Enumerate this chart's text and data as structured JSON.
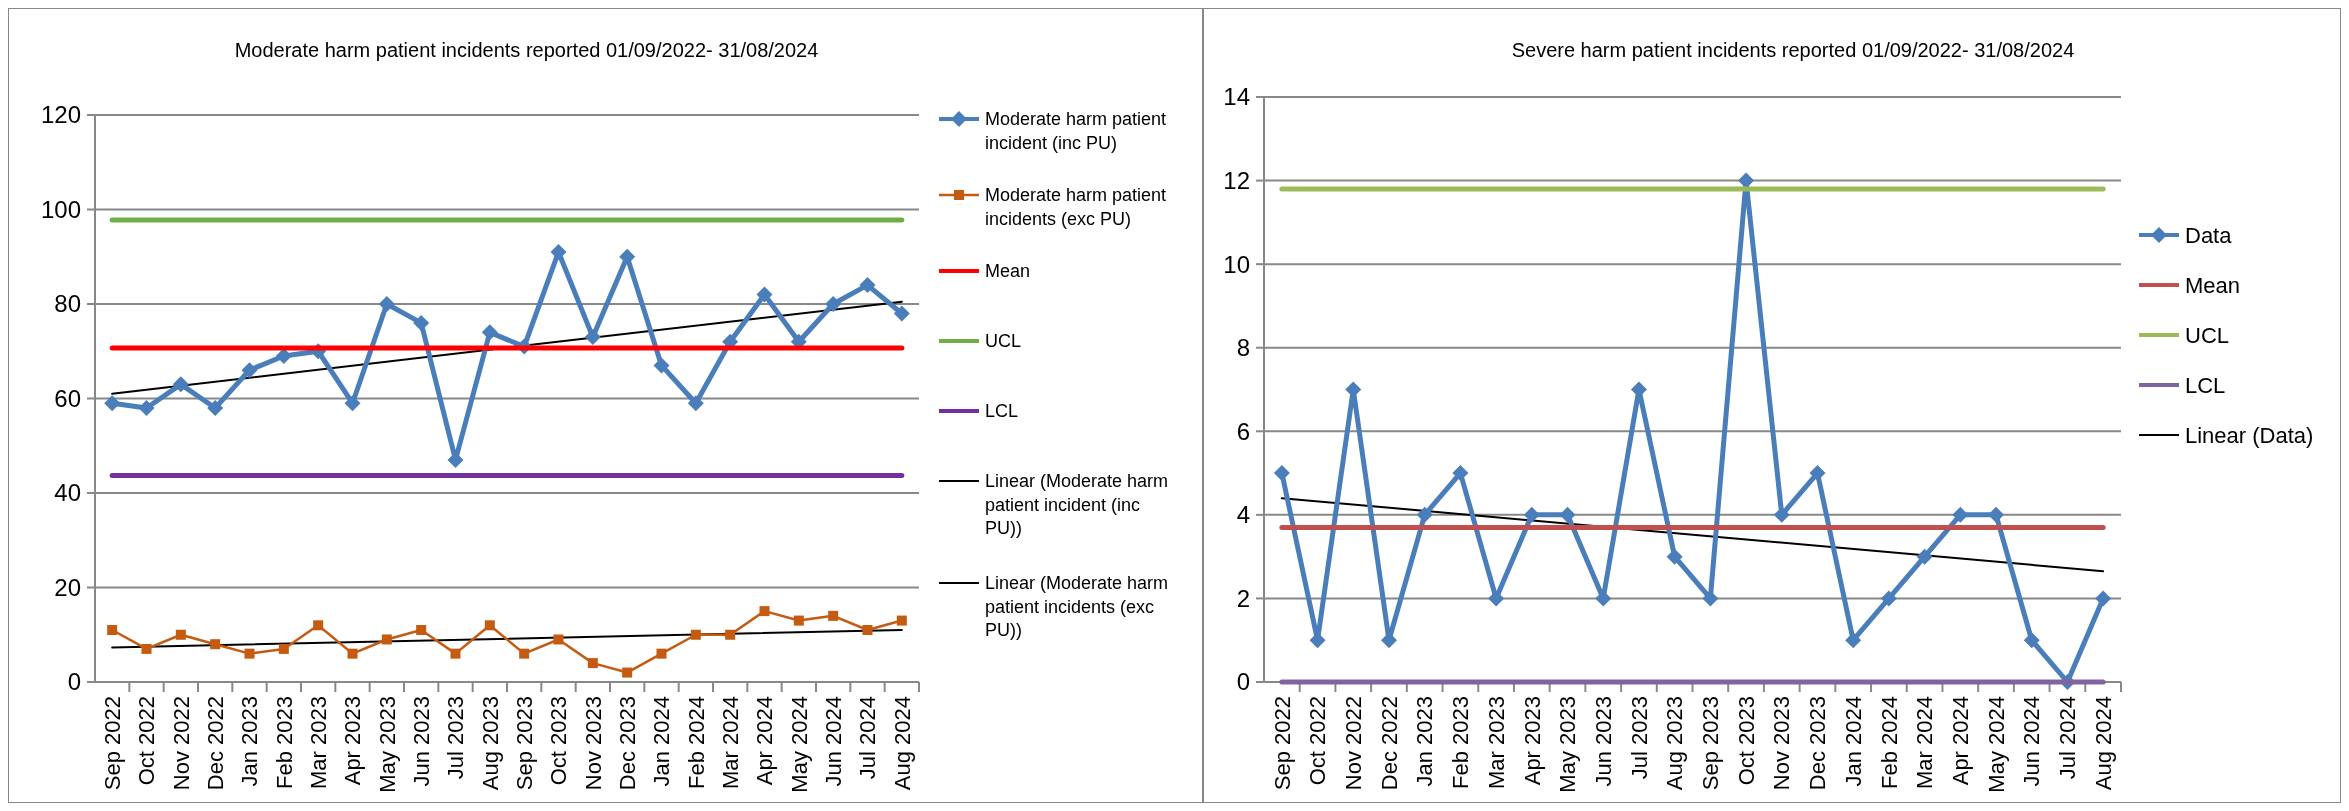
{
  "chart_data": [
    {
      "type": "line",
      "title": "Moderate harm patient incidents reported 01/09/2022- 31/08/2024",
      "categories": [
        "Sep 2022",
        "Oct 2022",
        "Nov 2022",
        "Dec 2022",
        "Jan 2023",
        "Feb 2023",
        "Mar 2023",
        "Apr 2023",
        "May 2023",
        "Jun 2023",
        "Jul 2023",
        "Aug 2023",
        "Sep 2023",
        "Oct 2023",
        "Nov 2023",
        "Dec 2023",
        "Jan 2024",
        "Feb 2024",
        "Mar 2024",
        "Apr 2024",
        "May 2024",
        "Jun 2024",
        "Jul 2024",
        "Aug 2024"
      ],
      "ylim": [
        0,
        120
      ],
      "yticks": [
        0,
        20,
        40,
        60,
        80,
        100,
        120
      ],
      "grid": "y",
      "legend": "right",
      "series": [
        {
          "name": "Moderate harm patient incident (inc PU)",
          "color": "#4a7ebb",
          "marker": "diamond",
          "values": [
            59,
            58,
            63,
            58,
            66,
            69,
            70,
            59,
            80,
            76,
            47,
            74,
            71,
            91,
            73,
            90,
            67,
            59,
            72,
            82,
            72,
            80,
            84,
            78
          ]
        },
        {
          "name": "Moderate harm patient incidents (exc PU)",
          "color": "#c55a11",
          "marker": "square",
          "values": [
            11,
            7,
            10,
            8,
            6,
            7,
            12,
            6,
            9,
            11,
            6,
            12,
            6,
            9,
            4,
            2,
            6,
            10,
            10,
            15,
            13,
            14,
            11,
            13
          ]
        },
        {
          "name": "Mean",
          "color": "#ff0000",
          "marker": "none",
          "values": [
            70.7,
            70.7,
            70.7,
            70.7,
            70.7,
            70.7,
            70.7,
            70.7,
            70.7,
            70.7,
            70.7,
            70.7,
            70.7,
            70.7,
            70.7,
            70.7,
            70.7,
            70.7,
            70.7,
            70.7,
            70.7,
            70.7,
            70.7,
            70.7
          ]
        },
        {
          "name": "UCL",
          "color": "#70ad47",
          "marker": "none",
          "values": [
            97.8,
            97.8,
            97.8,
            97.8,
            97.8,
            97.8,
            97.8,
            97.8,
            97.8,
            97.8,
            97.8,
            97.8,
            97.8,
            97.8,
            97.8,
            97.8,
            97.8,
            97.8,
            97.8,
            97.8,
            97.8,
            97.8,
            97.8,
            97.8
          ]
        },
        {
          "name": "LCL",
          "color": "#7030a0",
          "marker": "none",
          "values": [
            43.7,
            43.7,
            43.7,
            43.7,
            43.7,
            43.7,
            43.7,
            43.7,
            43.7,
            43.7,
            43.7,
            43.7,
            43.7,
            43.7,
            43.7,
            43.7,
            43.7,
            43.7,
            43.7,
            43.7,
            43.7,
            43.7,
            43.7,
            43.7
          ]
        },
        {
          "name": "Linear (Moderate harm patient incident (inc PU))",
          "color": "#000000",
          "marker": "none",
          "x": [
            "Sep 2022",
            "Aug 2024"
          ],
          "values": [
            61,
            80.5
          ]
        },
        {
          "name": "Linear (Moderate harm patient incidents (exc PU))",
          "color": "#000000",
          "marker": "none",
          "x": [
            "Sep 2022",
            "Aug 2024"
          ],
          "values": [
            7.3,
            11
          ]
        }
      ]
    },
    {
      "type": "line",
      "title": "Severe harm patient incidents reported 01/09/2022- 31/08/2024",
      "categories": [
        "Sep 2022",
        "Oct 2022",
        "Nov 2022",
        "Dec 2022",
        "Jan 2023",
        "Feb 2023",
        "Mar 2023",
        "Apr 2023",
        "May 2023",
        "Jun 2023",
        "Jul 2023",
        "Aug 2023",
        "Sep 2023",
        "Oct 2023",
        "Nov 2023",
        "Dec 2023",
        "Jan 2024",
        "Feb 2024",
        "Mar 2024",
        "Apr 2024",
        "May 2024",
        "Jun 2024",
        "Jul 2024",
        "Aug 2024"
      ],
      "ylim": [
        0,
        14
      ],
      "yticks": [
        0,
        2,
        4,
        6,
        8,
        10,
        12,
        14
      ],
      "grid": "y",
      "legend": "right",
      "series": [
        {
          "name": "Data",
          "color": "#4a7ebb",
          "marker": "diamond",
          "values": [
            5,
            1,
            7,
            1,
            4,
            5,
            2,
            4,
            4,
            2,
            7,
            3,
            2,
            12,
            4,
            5,
            1,
            2,
            3,
            4,
            4,
            1,
            0,
            2
          ]
        },
        {
          "name": "Mean",
          "color": "#c0504d",
          "marker": "none",
          "values": [
            3.7,
            3.7,
            3.7,
            3.7,
            3.7,
            3.7,
            3.7,
            3.7,
            3.7,
            3.7,
            3.7,
            3.7,
            3.7,
            3.7,
            3.7,
            3.7,
            3.7,
            3.7,
            3.7,
            3.7,
            3.7,
            3.7,
            3.7,
            3.7
          ]
        },
        {
          "name": "UCL",
          "color": "#9bbb59",
          "marker": "none",
          "values": [
            11.8,
            11.8,
            11.8,
            11.8,
            11.8,
            11.8,
            11.8,
            11.8,
            11.8,
            11.8,
            11.8,
            11.8,
            11.8,
            11.8,
            11.8,
            11.8,
            11.8,
            11.8,
            11.8,
            11.8,
            11.8,
            11.8,
            11.8,
            11.8
          ]
        },
        {
          "name": "LCL",
          "color": "#8064a2",
          "marker": "none",
          "values": [
            0,
            0,
            0,
            0,
            0,
            0,
            0,
            0,
            0,
            0,
            0,
            0,
            0,
            0,
            0,
            0,
            0,
            0,
            0,
            0,
            0,
            0,
            0,
            0
          ]
        },
        {
          "name": "Linear (Data)",
          "color": "#000000",
          "marker": "none",
          "x": [
            "Sep 2022",
            "Aug 2024"
          ],
          "values": [
            4.4,
            2.65
          ]
        }
      ]
    }
  ]
}
